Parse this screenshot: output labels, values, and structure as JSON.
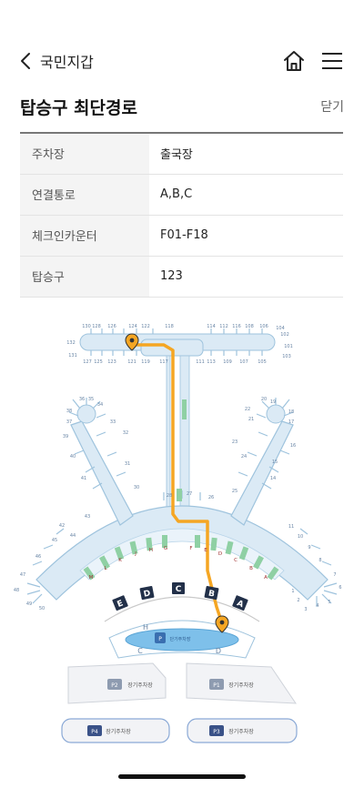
{
  "header": {
    "back_label": "국민지갑",
    "icons": {
      "back": "chevron-left-icon",
      "home": "home-icon",
      "menu": "hamburger-menu-icon"
    }
  },
  "page": {
    "title": "탑승구 최단경로",
    "close_label": "닫기"
  },
  "info_rows": [
    {
      "label": "주차장",
      "value": "출국장"
    },
    {
      "label": "연결통로",
      "value": "A,B,C"
    },
    {
      "label": "체크인카운터",
      "value": "F01-F18"
    },
    {
      "label": "탑승구",
      "value": "123"
    }
  ],
  "map": {
    "colors": {
      "terminal": "#dbeaf5",
      "outline": "#9ec3dd",
      "route": "#f5a623",
      "gate_area": "#8fd0a4",
      "counter_tag": "#223049"
    },
    "concourse_gates_top": [
      "130",
      "128",
      "126",
      "124",
      "122",
      "118",
      "114",
      "112",
      "116",
      "108",
      "106"
    ],
    "concourse_gates_bottom": [
      "127",
      "125",
      "123",
      "121",
      "119",
      "117",
      "111",
      "113",
      "109",
      "107",
      "105"
    ],
    "concourse_gates_left": [
      "132",
      "131"
    ],
    "concourse_gates_right": [
      "104",
      "102",
      "101",
      "103"
    ],
    "pier_left_gates": [
      "36",
      "35",
      "34",
      "38",
      "33",
      "37",
      "39",
      "32",
      "40",
      "31",
      "41",
      "30"
    ],
    "pier_right_gates": [
      "20",
      "19",
      "18",
      "22",
      "21",
      "17",
      "23",
      "16",
      "24",
      "15",
      "14",
      "25"
    ],
    "center_gates": [
      "28",
      "27",
      "26"
    ],
    "arc_left_gates": [
      "43",
      "42",
      "44",
      "45",
      "46",
      "47",
      "48",
      "49",
      "50"
    ],
    "arc_right_gates": [
      "11",
      "10",
      "9",
      "8",
      "7",
      "6",
      "5",
      "4",
      "3",
      "2",
      "1"
    ],
    "checkin_rows": [
      "M",
      "L",
      "K",
      "J",
      "H",
      "G",
      "F",
      "E",
      "D",
      "C",
      "B",
      "A"
    ],
    "counters": [
      "E",
      "D",
      "C",
      "B",
      "A"
    ],
    "transport_areas": [
      "H",
      "C",
      "D"
    ],
    "transport_center_badge": "P",
    "transport_center_label": "단기주차장",
    "parking": [
      {
        "code": "P2",
        "label": "장기주차장"
      },
      {
        "code": "P1",
        "label": "장기주차장"
      },
      {
        "code": "P4",
        "label": "장기주차장"
      },
      {
        "code": "P3",
        "label": "장기주차장"
      }
    ],
    "pins": [
      "start-pin",
      "destination-pin"
    ]
  }
}
